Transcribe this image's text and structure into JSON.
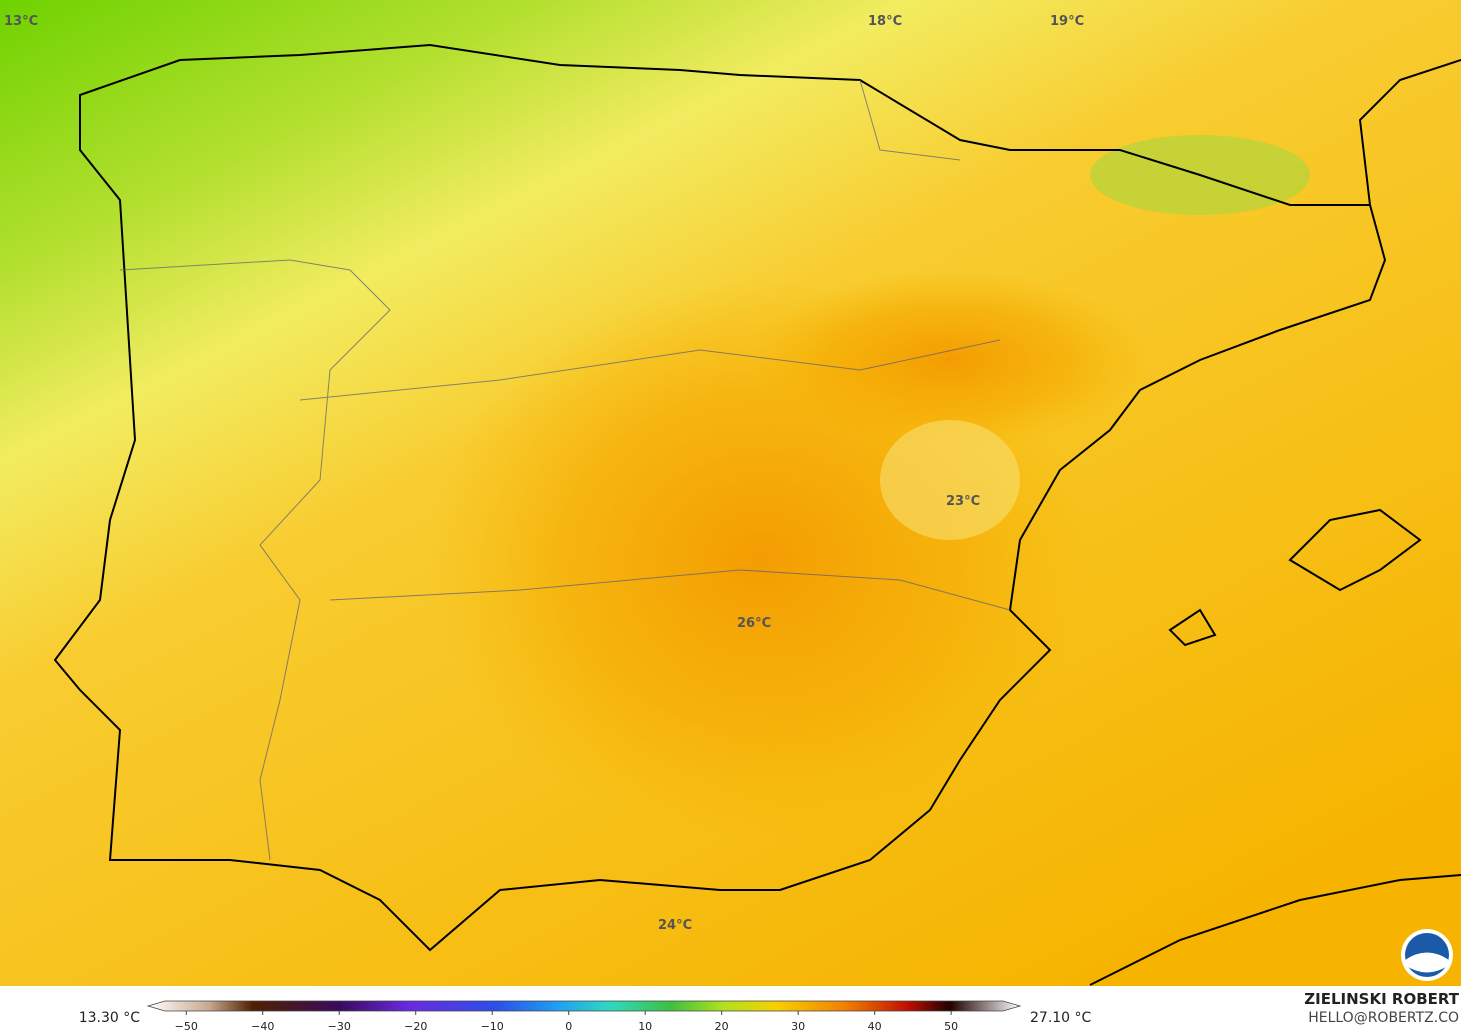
{
  "map": {
    "labels": [
      "13°C",
      "18°C",
      "19°C",
      "23°C",
      "26°C",
      "24°C"
    ],
    "footer": {
      "min_label": "13.30 °C",
      "max_label": "27.10 °C",
      "author": "ZIELINSKI ROBERT",
      "contact": "HELLO@ROBERTZ.CO"
    },
    "colorbar": {
      "range": [
        -55,
        59
      ],
      "ticks": [
        {
          "value": -50,
          "label": "−50"
        },
        {
          "value": -40,
          "label": "−40"
        },
        {
          "value": -30,
          "label": "−30"
        },
        {
          "value": -20,
          "label": "−20"
        },
        {
          "value": -10,
          "label": "−10"
        },
        0,
        10,
        20,
        30,
        40,
        50
      ]
    }
  }
}
